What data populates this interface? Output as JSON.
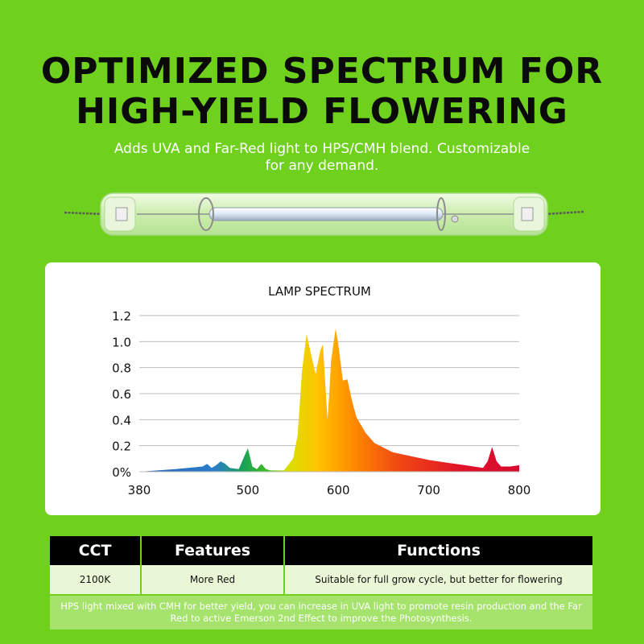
{
  "headline": {
    "line1": "OPTIMIZED SPECTRUM FOR",
    "line2": "HIGH-YIELD FLOWERING"
  },
  "subtitle": {
    "line1": "Adds UVA and Far-Red light to HPS/CMH blend. Customizable",
    "line2": "for any demand."
  },
  "lamp": {
    "icon": "hps-lamp-bulb"
  },
  "chart_data": {
    "type": "area",
    "title": "LAMP SPECTRUM",
    "xlabel": "",
    "ylabel": "",
    "xlim": [
      380,
      800
    ],
    "ylim": [
      0,
      1.2
    ],
    "xticks": [
      "380",
      "500",
      "600",
      "700",
      "800"
    ],
    "xtick_values": [
      380,
      500,
      600,
      700,
      800
    ],
    "yticks": [
      "0%",
      "0.2",
      "0.4",
      "0.6",
      "0.8",
      "1.0",
      "1.2"
    ],
    "ytick_values": [
      0,
      0.2,
      0.4,
      0.6,
      0.8,
      1.0,
      1.2
    ],
    "grid": true,
    "fill": "wavelength-gradient",
    "x": [
      380,
      420,
      450,
      455,
      460,
      465,
      470,
      475,
      480,
      490,
      495,
      500,
      505,
      510,
      515,
      520,
      525,
      540,
      550,
      555,
      560,
      565,
      570,
      575,
      580,
      583,
      588,
      590,
      592,
      597,
      600,
      605,
      610,
      615,
      620,
      630,
      640,
      660,
      680,
      700,
      720,
      740,
      760,
      765,
      770,
      775,
      780,
      790,
      800
    ],
    "y": [
      0,
      0.02,
      0.04,
      0.06,
      0.03,
      0.05,
      0.08,
      0.06,
      0.03,
      0.02,
      0.1,
      0.18,
      0.04,
      0.02,
      0.06,
      0.02,
      0.01,
      0.01,
      0.1,
      0.28,
      0.78,
      1.06,
      0.9,
      0.75,
      0.93,
      0.98,
      0.4,
      0.6,
      0.85,
      1.1,
      0.98,
      0.7,
      0.71,
      0.55,
      0.42,
      0.3,
      0.22,
      0.15,
      0.12,
      0.09,
      0.07,
      0.05,
      0.03,
      0.08,
      0.19,
      0.08,
      0.04,
      0.04,
      0.05
    ]
  },
  "table": {
    "headers": [
      "CCT",
      "Features",
      "Functions"
    ],
    "row": [
      "2100K",
      "More Red",
      "Suitable for full grow cycle, but better for flowering"
    ],
    "note": "HPS light mixed with CMH for better yield, you can increase in UVA light to promote resin production and the Far Red to active Emerson 2nd Effect to improve the Photosynthesis."
  },
  "colors": {
    "background": "#6fd11d",
    "headline": "#0a0a0a",
    "table_header": "#000000",
    "table_row": "#e9f7d6",
    "note_bg": "#a6e36c"
  }
}
